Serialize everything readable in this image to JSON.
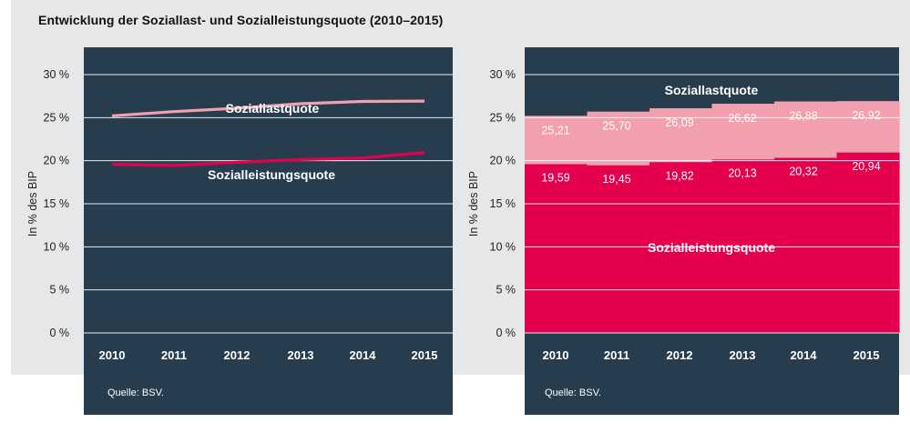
{
  "title": "Entwicklung der Soziallast- und Sozialleistungsquote (2010–2015)",
  "colors": {
    "background": "#e6e7e8",
    "panel": "#273d4e",
    "soziallast": "#f2a0ad",
    "sozialleistung": "#e4004f",
    "gridline": "#ffffff"
  },
  "chart_data": [
    {
      "type": "line",
      "x": [
        "2010",
        "2011",
        "2012",
        "2013",
        "2014",
        "2015"
      ],
      "yticks": [
        "0 %",
        "5 %",
        "10 %",
        "15 %",
        "20 %",
        "25 %",
        "30 %"
      ],
      "ylim": [
        0,
        30
      ],
      "ylabel": "In % des BIP",
      "grid": true,
      "series": [
        {
          "name": "Soziallastquote",
          "values": [
            25.21,
            25.7,
            26.09,
            26.62,
            26.88,
            26.92
          ]
        },
        {
          "name": "Sozialleistungsquote",
          "values": [
            19.59,
            19.45,
            19.82,
            20.13,
            20.32,
            20.94
          ]
        }
      ],
      "source": "Quelle: BSV."
    },
    {
      "type": "area",
      "x": [
        "2010",
        "2011",
        "2012",
        "2013",
        "2014",
        "2015"
      ],
      "yticks": [
        "0 %",
        "5 %",
        "10 %",
        "15 %",
        "20 %",
        "25 %",
        "30 %"
      ],
      "ylim": [
        0,
        30
      ],
      "ylabel": "In % des BIP",
      "grid": true,
      "series": [
        {
          "name": "Soziallastquote",
          "values": [
            25.21,
            25.7,
            26.09,
            26.62,
            26.88,
            26.92
          ],
          "labels": [
            "25,21",
            "25,70",
            "26,09",
            "26,62",
            "26,88",
            "26,92"
          ]
        },
        {
          "name": "Sozialleistungsquote",
          "values": [
            19.59,
            19.45,
            19.82,
            20.13,
            20.32,
            20.94
          ],
          "labels": [
            "19,59",
            "19,45",
            "19,82",
            "20,13",
            "20,32",
            "20,94"
          ]
        }
      ],
      "source": "Quelle: BSV."
    }
  ]
}
